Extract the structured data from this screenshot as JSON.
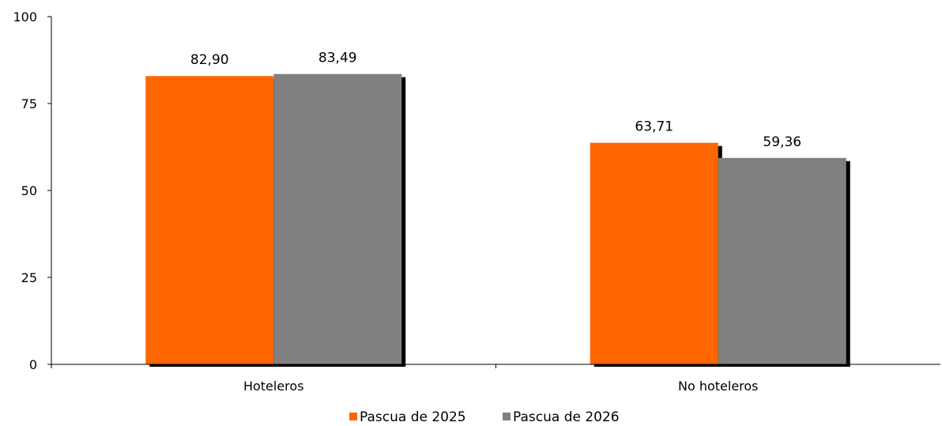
{
  "chart_data": {
    "type": "bar",
    "title": "",
    "xlabel": "",
    "ylabel": "",
    "categories": [
      "Hoteleros",
      "No hoteleros"
    ],
    "series": [
      {
        "name": "Pascua de 2025",
        "values": [
          82.9,
          63.71
        ],
        "labels": [
          "82,90",
          "63,71"
        ],
        "color": "#FF6600"
      },
      {
        "name": "Pascua de 2026",
        "values": [
          83.49,
          59.36
        ],
        "labels": [
          "83,49",
          "59,36"
        ],
        "color": "#808080"
      }
    ],
    "ylim": [
      0,
      100
    ],
    "yticks": [
      0,
      25,
      50,
      75,
      100
    ],
    "ytick_labels": [
      "0",
      "25",
      "50",
      "75",
      "100"
    ],
    "grid": false,
    "legend_position": "bottom",
    "shadow_color": "#000000"
  }
}
